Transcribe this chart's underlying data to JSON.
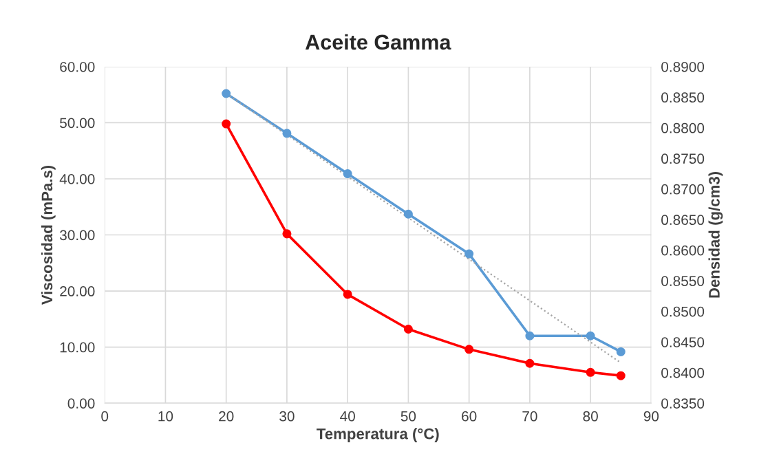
{
  "chart_data": {
    "type": "line",
    "title": "Aceite Gamma",
    "xlabel": "Temperatura (°C)",
    "ylabel": "Viscosidad (mPa.s)",
    "y2label": "Densidad (g/cm3)",
    "x": [
      20,
      30,
      40,
      50,
      60,
      70,
      80,
      85
    ],
    "series": [
      {
        "color": "#ff0000",
        "values": [
          49.8,
          30.2,
          19.4,
          13.2,
          9.6,
          7.1,
          5.5,
          4.9
        ],
        "marker": "circle"
      },
      {
        "color": "#5b9bd5",
        "axis": "y2",
        "values": [
          0.8856,
          0.8791,
          0.8725,
          0.8659,
          0.8594,
          0.846,
          0.846,
          0.8434
        ],
        "marker": "circle"
      },
      {
        "color": "#a5a5a5",
        "axis": "y2",
        "x": [
          20,
          85
        ],
        "values": [
          0.8856,
          0.8416
        ],
        "line_style": "dotted",
        "marker": "none"
      }
    ],
    "xlim": [
      0,
      90
    ],
    "xticks": [
      0,
      10,
      20,
      30,
      40,
      50,
      60,
      70,
      80,
      90
    ],
    "ylim": [
      0,
      60
    ],
    "yticks": [
      {
        "value": 0,
        "label": "0.00"
      },
      {
        "value": 10,
        "label": "10.00"
      },
      {
        "value": 20,
        "label": "20.00"
      },
      {
        "value": 30,
        "label": "30.00"
      },
      {
        "value": 40,
        "label": "40.00"
      },
      {
        "value": 50,
        "label": "50.00"
      },
      {
        "value": 60,
        "label": "60.00"
      }
    ],
    "y2lim": [
      0.835,
      0.89
    ],
    "y2ticks": [
      {
        "value": 0.835,
        "label": "0.8350"
      },
      {
        "value": 0.84,
        "label": "0.8400"
      },
      {
        "value": 0.845,
        "label": "0.8450"
      },
      {
        "value": 0.85,
        "label": "0.8500"
      },
      {
        "value": 0.855,
        "label": "0.8550"
      },
      {
        "value": 0.86,
        "label": "0.8600"
      },
      {
        "value": 0.865,
        "label": "0.8650"
      },
      {
        "value": 0.87,
        "label": "0.8700"
      },
      {
        "value": 0.875,
        "label": "0.8750"
      },
      {
        "value": 0.88,
        "label": "0.8800"
      },
      {
        "value": 0.885,
        "label": "0.8850"
      },
      {
        "value": 0.89,
        "label": "0.8900"
      }
    ],
    "grid": true
  }
}
